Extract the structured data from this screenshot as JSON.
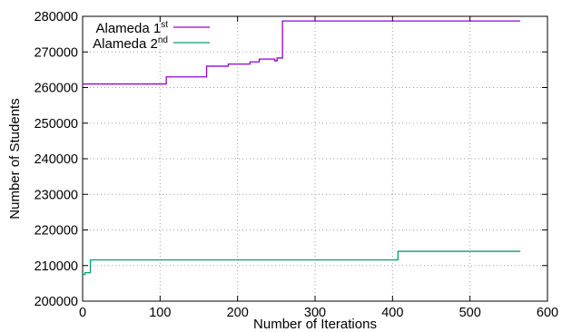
{
  "chart_data": {
    "type": "line",
    "title": "",
    "xlabel": "Number of Iterations",
    "ylabel": "Number of Students",
    "xlim": [
      0,
      600
    ],
    "ylim": [
      200000,
      280000
    ],
    "xticks": [
      0,
      100,
      200,
      300,
      400,
      500,
      600
    ],
    "yticks": [
      200000,
      210000,
      220000,
      230000,
      240000,
      250000,
      260000,
      270000,
      280000
    ],
    "grid": true,
    "legend_position": "top-left",
    "series": [
      {
        "name": "Alameda 1",
        "name_superscript": "st",
        "color": "#9400d3",
        "step": true,
        "points": [
          [
            0,
            261000
          ],
          [
            108,
            261000
          ],
          [
            108,
            263000
          ],
          [
            160,
            263000
          ],
          [
            160,
            266000
          ],
          [
            188,
            266000
          ],
          [
            188,
            266600
          ],
          [
            216,
            266600
          ],
          [
            216,
            267200
          ],
          [
            228,
            267200
          ],
          [
            228,
            268000
          ],
          [
            248,
            268000
          ],
          [
            248,
            267500
          ],
          [
            251,
            267500
          ],
          [
            251,
            268300
          ],
          [
            258,
            268300
          ],
          [
            258,
            278700
          ],
          [
            565,
            278700
          ]
        ]
      },
      {
        "name": "Alameda 2",
        "name_superscript": "nd",
        "color": "#009e73",
        "step": true,
        "points": [
          [
            0,
            207500
          ],
          [
            3,
            207500
          ],
          [
            3,
            208000
          ],
          [
            10,
            208000
          ],
          [
            10,
            211600
          ],
          [
            407,
            211600
          ],
          [
            407,
            214000
          ],
          [
            565,
            214000
          ]
        ]
      }
    ]
  }
}
